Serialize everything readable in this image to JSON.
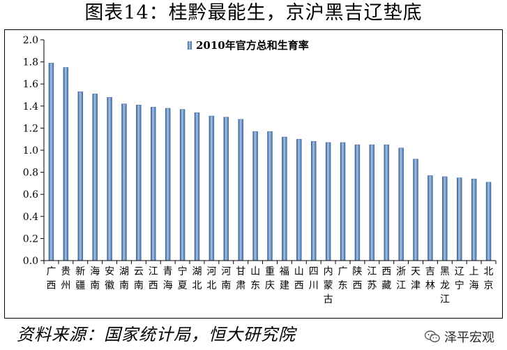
{
  "title": "图表14：桂黔最能生，京沪黑吉辽垫底",
  "source": "资料来源：国家统计局，恒大研究院",
  "watermark": "泽平宏观",
  "colors": {
    "bar": "#4f81bd",
    "bar_dark": "#2f5b8f",
    "bar_light": "#a9c3e4"
  },
  "chart_data": {
    "type": "bar",
    "legend": {
      "label": "2010年官方总和生育率",
      "position": "top-center"
    },
    "ylim": [
      0,
      2.0
    ],
    "yticks": [
      "0.0",
      "0.2",
      "0.4",
      "0.6",
      "0.8",
      "1.0",
      "1.2",
      "1.4",
      "1.6",
      "1.8",
      "2.0"
    ],
    "grid": false,
    "categories": [
      "广西",
      "贵州",
      "新疆",
      "海南",
      "安徽",
      "湖南",
      "云南",
      "江西",
      "青海",
      "宁夏",
      "湖北",
      "河北",
      "河南",
      "甘肃",
      "山东",
      "重庆",
      "福建",
      "山西",
      "四川",
      "内蒙古",
      "广东",
      "陕西",
      "江苏",
      "西藏",
      "浙江",
      "天津",
      "吉林",
      "黑龙江",
      "辽宁",
      "上海",
      "北京"
    ],
    "values": [
      1.79,
      1.75,
      1.53,
      1.51,
      1.48,
      1.42,
      1.41,
      1.39,
      1.38,
      1.37,
      1.34,
      1.31,
      1.3,
      1.28,
      1.17,
      1.17,
      1.12,
      1.1,
      1.08,
      1.07,
      1.07,
      1.05,
      1.05,
      1.05,
      1.02,
      0.92,
      0.77,
      0.76,
      0.75,
      0.74,
      0.71
    ]
  }
}
